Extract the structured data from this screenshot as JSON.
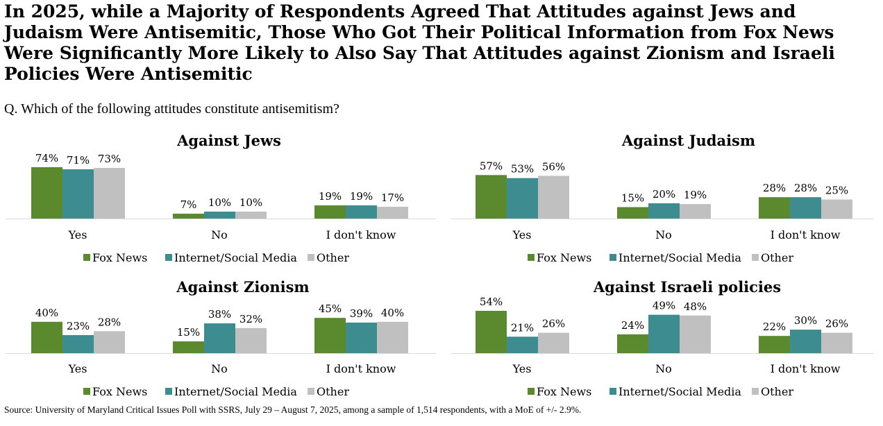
{
  "title": "In 2025, while a Majority of Respondents Agreed That Attitudes against Jews and Judaism Were Antisemitic, Those Who Got Their Political Information from Fox News Were Significantly More Likely to Also Say That Attitudes against Zionism and Israeli Policies Were Antisemitic",
  "question": "Q. Which of the following attitudes constitute antisemitism?",
  "source": "Source: University of Maryland Critical Issues Poll with SSRS, July 29 – August 7, 2025, among a sample of 1,514 respondents, with a MoE of +/- 2.9%.",
  "colors": {
    "Fox News": "#5b8a2e",
    "Internet/Social Media": "#3d8d90",
    "Other": "#c0c0c0"
  },
  "chart_data": [
    {
      "type": "bar",
      "title": "Against Jews",
      "categories": [
        "Yes",
        "No",
        "I don't know"
      ],
      "legend": "bottom",
      "series": [
        {
          "name": "Fox News",
          "values": [
            74,
            7,
            19
          ]
        },
        {
          "name": "Internet/Social Media",
          "values": [
            71,
            10,
            19
          ]
        },
        {
          "name": "Other",
          "values": [
            73,
            10,
            17
          ]
        }
      ]
    },
    {
      "type": "bar",
      "title": "Against Judaism",
      "categories": [
        "Yes",
        "No",
        "I don't know"
      ],
      "legend": "bottom",
      "series": [
        {
          "name": "Fox News",
          "values": [
            57,
            15,
            28
          ]
        },
        {
          "name": "Internet/Social Media",
          "values": [
            53,
            20,
            28
          ]
        },
        {
          "name": "Other",
          "values": [
            56,
            19,
            25
          ]
        }
      ]
    },
    {
      "type": "bar",
      "title": "Against Zionism",
      "categories": [
        "Yes",
        "No",
        "I don't know"
      ],
      "legend": "bottom",
      "series": [
        {
          "name": "Fox News",
          "values": [
            40,
            15,
            45
          ]
        },
        {
          "name": "Internet/Social Media",
          "values": [
            23,
            38,
            39
          ]
        },
        {
          "name": "Other",
          "values": [
            28,
            32,
            40
          ]
        }
      ]
    },
    {
      "type": "bar",
      "title": "Against Israeli policies",
      "categories": [
        "Yes",
        "No",
        "I don't know"
      ],
      "legend": "bottom",
      "series": [
        {
          "name": "Fox News",
          "values": [
            54,
            24,
            22
          ]
        },
        {
          "name": "Internet/Social Media",
          "values": [
            21,
            49,
            30
          ]
        },
        {
          "name": "Other",
          "values": [
            26,
            48,
            26
          ]
        }
      ]
    }
  ]
}
